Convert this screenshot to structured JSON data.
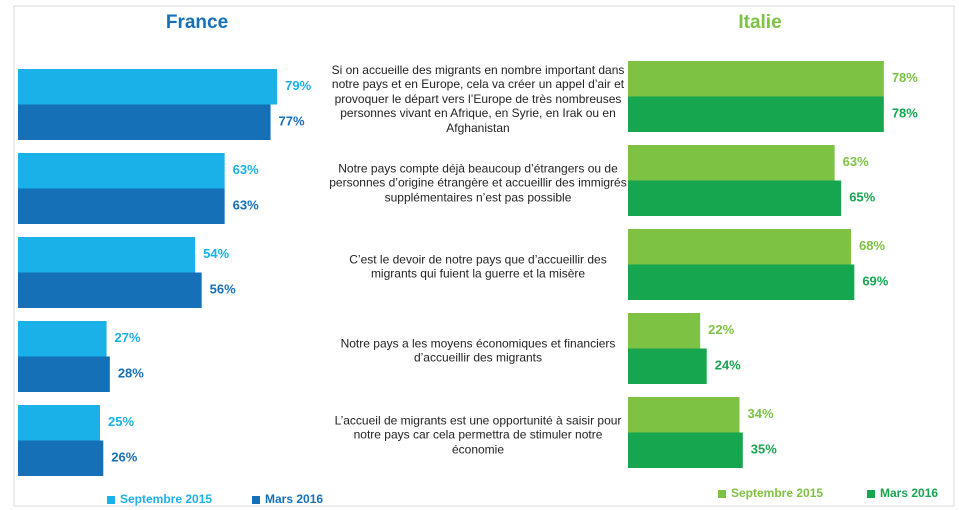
{
  "chart_data": [
    {
      "type": "bar",
      "title": "France",
      "categories": [
        "Si on accueille des migrants en nombre important dans notre pays et en Europe, cela va créer un appel d’air et provoquer le départ vers l’Europe de très nombreuses personnes vivant en Afrique, en Syrie, en Irak ou en Afghanistan",
        "Notre pays compte déjà beaucoup d’étrangers ou de personnes d’origine étrangère et accueillir des immigrés supplémentaires n’est pas possible",
        "C’est le devoir de notre pays que d’accueillir des migrants qui fuient la guerre et la misère",
        "Notre pays a les moyens économiques et financiers d’accueillir des migrants",
        "L’accueil de migrants est une opportunité à saisir pour notre pays car cela permettra de stimuler notre économie"
      ],
      "series": [
        {
          "name": "Septembre 2015",
          "color": "#1ab0e8",
          "values": [
            79,
            63,
            54,
            27,
            25
          ],
          "value_labels": [
            "79%",
            "63%",
            "54%",
            "27%",
            "25%"
          ]
        },
        {
          "name": "Mars 2016",
          "color": "#1670b8",
          "values": [
            77,
            63,
            56,
            28,
            26
          ],
          "value_labels": [
            "77%",
            "63%",
            "56%",
            "28%",
            "26%"
          ]
        }
      ]
    },
    {
      "type": "bar",
      "title": "Italie",
      "series": [
        {
          "name": "Septembre 2015",
          "color": "#7dc243",
          "values": [
            78,
            63,
            68,
            22,
            34
          ],
          "value_labels": [
            "78%",
            "63%",
            "68%",
            "22%",
            "34%"
          ]
        },
        {
          "name": "Mars 2016",
          "color": "#17a650",
          "values": [
            78,
            65,
            69,
            24,
            35
          ],
          "value_labels": [
            "78%",
            "65%",
            "69%",
            "24%",
            "35%"
          ]
        }
      ]
    }
  ]
}
